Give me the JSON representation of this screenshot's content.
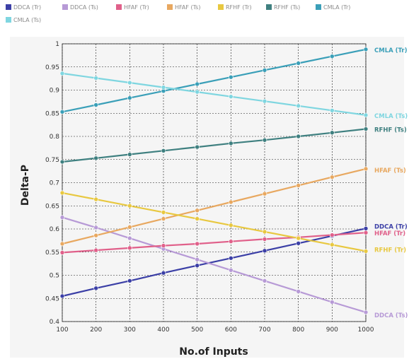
{
  "chart_data": {
    "type": "line",
    "title": "",
    "xlabel": "No.of Inputs",
    "ylabel": "Delta-P",
    "x": [
      100,
      200,
      300,
      400,
      500,
      600,
      700,
      800,
      900,
      1000
    ],
    "xlim": [
      100,
      1000
    ],
    "ylim": [
      0.4,
      1.0
    ],
    "yticks": [
      "0.4",
      "0.45",
      "0.5",
      "0.55",
      "0.6",
      "0.65",
      "0.7",
      "0.75",
      "0.8",
      "0.85",
      "0.9",
      "0.95",
      "1"
    ],
    "xticks": [
      "100",
      "200",
      "300",
      "400",
      "500",
      "600",
      "700",
      "800",
      "900",
      "1000"
    ],
    "grid": true,
    "legend_position": "top",
    "series": [
      {
        "name": "DDCA (Tr)",
        "end_label": "DDCA (Tr)",
        "color": "#3b3fa6",
        "values": [
          0.455,
          0.472,
          0.488,
          0.505,
          0.521,
          0.537,
          0.553,
          0.569,
          0.585,
          0.601
        ]
      },
      {
        "name": "DDCA (Ts)",
        "end_label": "DDCA (Ts)",
        "color": "#b79ad6",
        "values": [
          0.625,
          0.603,
          0.58,
          0.557,
          0.534,
          0.511,
          0.488,
          0.465,
          0.442,
          0.42
        ]
      },
      {
        "name": "HFAF (Tr)",
        "end_label": "HFAF (Tr)",
        "color": "#e0608a",
        "values": [
          0.549,
          0.554,
          0.559,
          0.564,
          0.568,
          0.573,
          0.578,
          0.582,
          0.587,
          0.592
        ]
      },
      {
        "name": "HFAF (Ts)",
        "end_label": "HFAF (Ts)",
        "color": "#e8a860",
        "values": [
          0.568,
          0.586,
          0.604,
          0.622,
          0.64,
          0.658,
          0.676,
          0.694,
          0.712,
          0.73
        ]
      },
      {
        "name": "RFHF (Tr)",
        "end_label": "RFHF (Tr)",
        "color": "#e8c840",
        "values": [
          0.678,
          0.664,
          0.65,
          0.636,
          0.622,
          0.608,
          0.594,
          0.58,
          0.566,
          0.552
        ]
      },
      {
        "name": "RFHF (Ts)",
        "end_label": "RFHF (Ts)",
        "color": "#3f8080",
        "values": [
          0.745,
          0.753,
          0.761,
          0.769,
          0.777,
          0.785,
          0.792,
          0.8,
          0.808,
          0.816
        ]
      },
      {
        "name": "CMLA (Tr)",
        "end_label": "CMLA (Tr)",
        "color": "#3a9fb8",
        "values": [
          0.853,
          0.868,
          0.883,
          0.898,
          0.913,
          0.928,
          0.943,
          0.958,
          0.973,
          0.988
        ]
      },
      {
        "name": "CMLA (Ts)",
        "end_label": "CMLA (Ts)",
        "color": "#7fd6e0",
        "values": [
          0.936,
          0.926,
          0.916,
          0.906,
          0.896,
          0.886,
          0.876,
          0.866,
          0.856,
          0.846
        ]
      }
    ]
  }
}
